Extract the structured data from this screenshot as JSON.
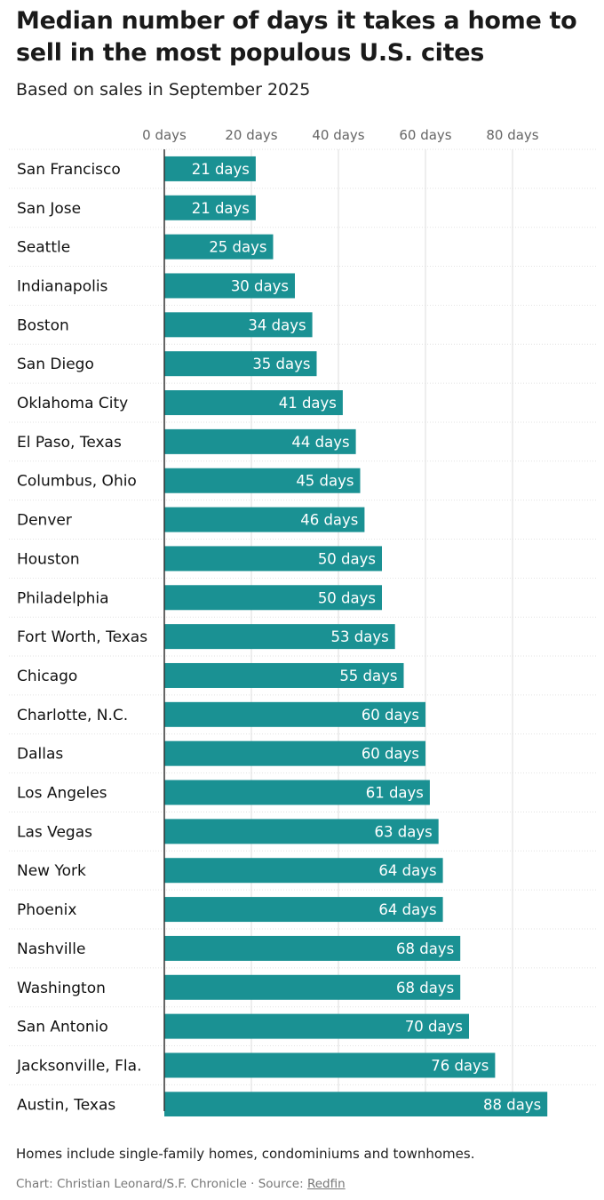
{
  "chart_data": {
    "type": "bar",
    "orientation": "horizontal",
    "title": "Median number of days it takes a home to sell in the most populous U.S. cites",
    "subtitle": "Based on sales in September 2025",
    "xlabel": "",
    "ylabel": "",
    "xlim": [
      0,
      100
    ],
    "ticks": [
      0,
      20,
      40,
      60,
      80
    ],
    "tick_labels": [
      "0 days",
      "20 days",
      "40 days",
      "60 days",
      "80 days"
    ],
    "value_suffix": " days",
    "grid": true,
    "categories": [
      "San Francisco",
      "San Jose",
      "Seattle",
      "Indianapolis",
      "Boston",
      "San Diego",
      "Oklahoma City",
      "El Paso, Texas",
      "Columbus, Ohio",
      "Denver",
      "Houston",
      "Philadelphia",
      "Fort Worth, Texas",
      "Chicago",
      "Charlotte, N.C.",
      "Dallas",
      "Los Angeles",
      "Las Vegas",
      "New York",
      "Phoenix",
      "Nashville",
      "Washington",
      "San Antonio",
      "Jacksonville, Fla.",
      "Austin, Texas"
    ],
    "values": [
      21,
      21,
      25,
      30,
      34,
      35,
      41,
      44,
      45,
      46,
      50,
      50,
      53,
      55,
      60,
      60,
      61,
      63,
      64,
      64,
      68,
      68,
      70,
      76,
      88
    ],
    "bar_color": "#1a9193",
    "axis_color": "#333333",
    "grid_color": "#dddddd"
  },
  "footer": {
    "note": "Homes include single-family homes, condominiums and townhomes.",
    "credit_prefix": "Chart: Christian Leonard/S.F. Chronicle · Source: ",
    "source_link": "Redfin"
  }
}
